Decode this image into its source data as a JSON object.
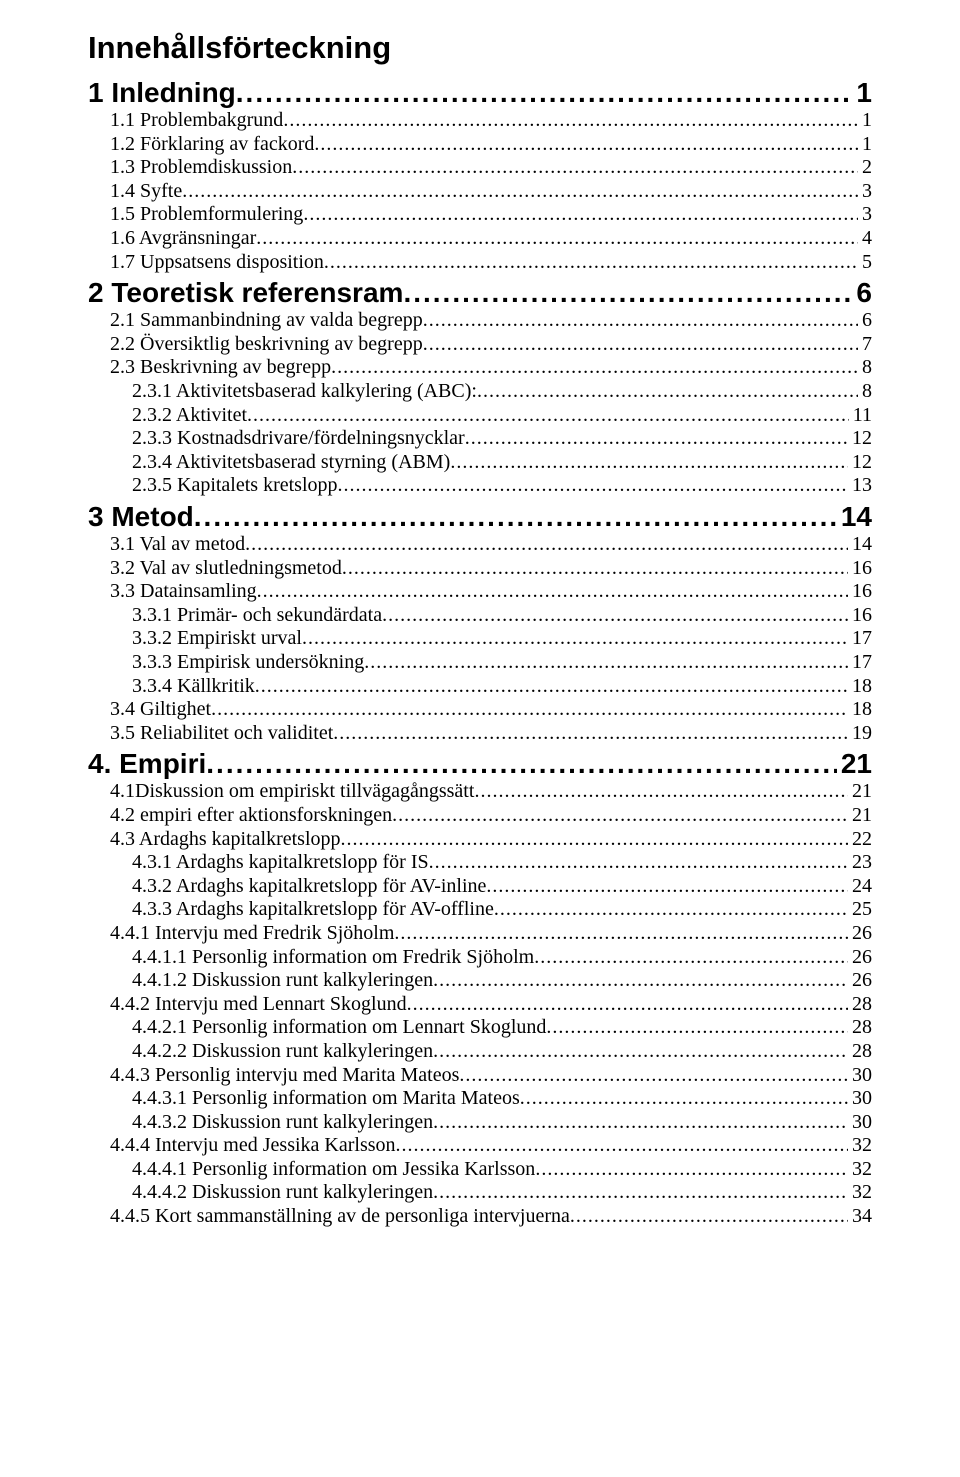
{
  "title": "Innehållsförteckning",
  "entries": [
    {
      "level": 1,
      "label": "1 Inledning",
      "page": "1"
    },
    {
      "level": 2,
      "label": "1.1 Problembakgrund",
      "page": "1"
    },
    {
      "level": 2,
      "label": "1.2 Förklaring av fackord",
      "page": "1"
    },
    {
      "level": 2,
      "label": "1.3 Problemdiskussion",
      "page": "2"
    },
    {
      "level": 2,
      "label": "1.4 Syfte",
      "page": "3"
    },
    {
      "level": 2,
      "label": "1.5 Problemformulering",
      "page": "3"
    },
    {
      "level": 2,
      "label": "1.6 Avgränsningar",
      "page": "4"
    },
    {
      "level": 2,
      "label": "1.7 Uppsatsens disposition",
      "page": "5"
    },
    {
      "level": 1,
      "label": "2 Teoretisk referensram",
      "page": "6"
    },
    {
      "level": 2,
      "label": "2.1 Sammanbindning av valda begrepp",
      "page": "6"
    },
    {
      "level": 2,
      "label": "2.2 Översiktlig beskrivning av begrepp",
      "page": "7"
    },
    {
      "level": 2,
      "label": "2.3 Beskrivning av begrepp",
      "page": "8"
    },
    {
      "level": 3,
      "label": "2.3.1 Aktivitetsbaserad kalkylering (ABC):",
      "page": "8"
    },
    {
      "level": 3,
      "label": "2.3.2 Aktivitet",
      "page": "11"
    },
    {
      "level": 3,
      "label": "2.3.3 Kostnadsdrivare/fördelningsnycklar",
      "page": "12"
    },
    {
      "level": 3,
      "label": "2.3.4 Aktivitetsbaserad styrning (ABM)",
      "page": "12"
    },
    {
      "level": 3,
      "label": "2.3.5 Kapitalets kretslopp",
      "page": "13"
    },
    {
      "level": 1,
      "label": "3 Metod",
      "page": "14"
    },
    {
      "level": 2,
      "label": "3.1 Val av metod",
      "page": "14"
    },
    {
      "level": 2,
      "label": "3.2 Val av slutledningsmetod",
      "page": "16"
    },
    {
      "level": 2,
      "label": "3.3 Datainsamling",
      "page": "16"
    },
    {
      "level": 3,
      "label": "3.3.1 Primär- och sekundärdata",
      "page": "16"
    },
    {
      "level": 3,
      "label": "3.3.2 Empiriskt urval",
      "page": "17"
    },
    {
      "level": 3,
      "label": "3.3.3 Empirisk undersökning",
      "page": "17"
    },
    {
      "level": 3,
      "label": "3.3.4 Källkritik",
      "page": "18"
    },
    {
      "level": 2,
      "label": "3.4 Giltighet",
      "page": "18"
    },
    {
      "level": 2,
      "label": "3.5 Reliabilitet och validitet",
      "page": "19"
    },
    {
      "level": 1,
      "label": "4. Empiri",
      "page": "21"
    },
    {
      "level": 2,
      "label": "4.1Diskussion om empiriskt tillvägagångssätt",
      "page": "21"
    },
    {
      "level": 2,
      "label": "4.2 empiri efter aktionsforskningen",
      "page": "21"
    },
    {
      "level": 2,
      "label": "4.3 Ardaghs kapitalkretslopp",
      "page": "22"
    },
    {
      "level": 3,
      "label": "4.3.1 Ardaghs kapitalkretslopp för IS",
      "page": "23"
    },
    {
      "level": 3,
      "label": "4.3.2 Ardaghs kapitalkretslopp för AV-inline",
      "page": "24"
    },
    {
      "level": 3,
      "label": "4.3.3 Ardaghs kapitalkretslopp för AV-offline",
      "page": "25"
    },
    {
      "level": 2,
      "label": "4.4.1 Intervju med Fredrik Sjöholm",
      "page": "26"
    },
    {
      "level": 3,
      "label": "4.4.1.1 Personlig information om Fredrik Sjöholm",
      "page": "26"
    },
    {
      "level": 3,
      "label": "4.4.1.2 Diskussion runt kalkyleringen",
      "page": "26"
    },
    {
      "level": 2,
      "label": "4.4.2 Intervju med Lennart Skoglund",
      "page": "28"
    },
    {
      "level": 3,
      "label": "4.4.2.1 Personlig information om Lennart Skoglund",
      "page": "28"
    },
    {
      "level": 3,
      "label": "4.4.2.2 Diskussion runt kalkyleringen",
      "page": "28"
    },
    {
      "level": 2,
      "label": "4.4.3 Personlig intervju med Marita Mateos",
      "page": "30"
    },
    {
      "level": 3,
      "label": "4.4.3.1 Personlig information om Marita Mateos",
      "page": "30"
    },
    {
      "level": 3,
      "label": "4.4.3.2 Diskussion runt kalkyleringen",
      "page": "30"
    },
    {
      "level": 2,
      "label": "4.4.4 Intervju med Jessika Karlsson",
      "page": "32"
    },
    {
      "level": 3,
      "label": "4.4.4.1 Personlig information om Jessika Karlsson",
      "page": "32"
    },
    {
      "level": 3,
      "label": "4.4.4.2 Diskussion runt kalkyleringen",
      "page": "32"
    },
    {
      "level": 2,
      "label": "4.4.5 Kort sammanställning av de personliga intervjuerna",
      "page": "34"
    }
  ]
}
